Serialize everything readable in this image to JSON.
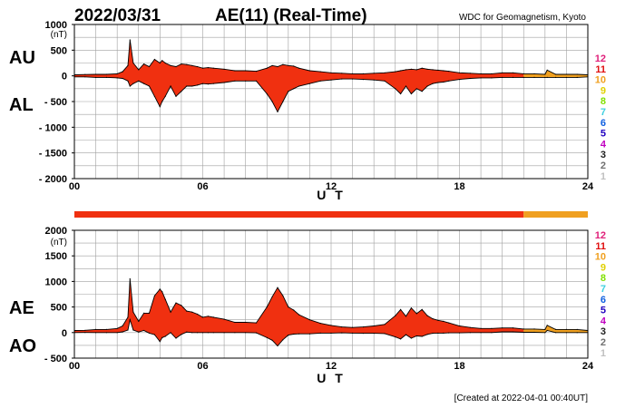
{
  "header": {
    "date": "2022/03/31",
    "title": "AE(11) (Real-Time)",
    "source": "WDC for Geomagnetism, Kyoto"
  },
  "footer": {
    "created": "[Created at 2022-04-01 00:40UT]"
  },
  "colors": {
    "fill_main": "#f03010",
    "fill_late": "#f0a020",
    "envelope": "#000000",
    "grid": "#a0a0a0"
  },
  "station_counts": [
    {
      "label": "12",
      "color": "#e0207a"
    },
    {
      "label": "11",
      "color": "#e01010"
    },
    {
      "label": "10",
      "color": "#f0a020"
    },
    {
      "label": "9",
      "color": "#e0d000"
    },
    {
      "label": "8",
      "color": "#80e000"
    },
    {
      "label": "7",
      "color": "#40d0e0"
    },
    {
      "label": "6",
      "color": "#1060e0"
    },
    {
      "label": "5",
      "color": "#2000c0"
    },
    {
      "label": "4",
      "color": "#c000c0"
    },
    {
      "label": "3",
      "color": "#202020"
    },
    {
      "label": "2",
      "color": "#707070"
    },
    {
      "label": "1",
      "color": "#c0c0c0"
    }
  ],
  "station_bar": {
    "segments": [
      {
        "start": 0,
        "end": 21,
        "color": "#f03010",
        "label": "11"
      },
      {
        "start": 21,
        "end": 24,
        "color": "#f0a020",
        "label": "10"
      }
    ]
  },
  "chart_data": [
    {
      "type": "area",
      "name": "AU/AL",
      "side_labels": [
        "AU",
        "AL"
      ],
      "unit": "(nT)",
      "xlabel": "U T",
      "xticks": [
        "00",
        "06",
        "12",
        "18",
        "24"
      ],
      "xlim": [
        0,
        24
      ],
      "ylim": [
        -2000,
        1000
      ],
      "yticks": [
        "1000",
        "500",
        "0",
        "- 500",
        "- 1000",
        "- 1500",
        "- 2000"
      ],
      "ytick_values": [
        1000,
        500,
        0,
        -500,
        -1000,
        -1500,
        -2000
      ],
      "grid": true,
      "x": [
        0,
        0.5,
        1,
        1.5,
        2,
        2.25,
        2.5,
        2.6,
        2.75,
        3,
        3.25,
        3.5,
        3.75,
        4,
        4.1,
        4.25,
        4.5,
        4.75,
        5,
        5.25,
        5.5,
        5.75,
        6,
        6.25,
        6.5,
        7,
        7.5,
        8,
        8.5,
        9,
        9.25,
        9.5,
        9.75,
        10,
        10.25,
        10.5,
        11,
        11.5,
        12,
        12.5,
        13,
        13.5,
        14,
        14.5,
        15,
        15.25,
        15.5,
        15.75,
        16,
        16.25,
        16.5,
        16.75,
        17,
        17.25,
        17.5,
        18,
        18.5,
        19,
        19.5,
        20,
        20.5,
        21,
        21.5,
        22,
        22.1,
        22.5,
        23,
        23.5,
        24
      ],
      "series": [
        {
          "name": "AU",
          "values": [
            20,
            25,
            30,
            30,
            40,
            80,
            200,
            700,
            250,
            120,
            230,
            180,
            320,
            250,
            300,
            250,
            200,
            180,
            230,
            220,
            200,
            180,
            150,
            160,
            150,
            130,
            100,
            100,
            90,
            150,
            200,
            180,
            220,
            200,
            190,
            150,
            100,
            80,
            60,
            50,
            40,
            40,
            50,
            60,
            80,
            100,
            120,
            130,
            120,
            150,
            130,
            120,
            110,
            100,
            90,
            60,
            50,
            40,
            40,
            60,
            60,
            40,
            40,
            30,
            110,
            30,
            30,
            30,
            20
          ]
        },
        {
          "name": "AL",
          "values": [
            -20,
            -20,
            -30,
            -30,
            -40,
            -50,
            -100,
            -200,
            -150,
            -100,
            -150,
            -200,
            -400,
            -600,
            -500,
            -400,
            -200,
            -400,
            -300,
            -200,
            -200,
            -180,
            -150,
            -160,
            -150,
            -130,
            -100,
            -100,
            -100,
            -350,
            -500,
            -700,
            -500,
            -300,
            -250,
            -200,
            -150,
            -100,
            -80,
            -60,
            -60,
            -70,
            -80,
            -100,
            -250,
            -350,
            -200,
            -350,
            -250,
            -300,
            -200,
            -150,
            -130,
            -120,
            -100,
            -70,
            -50,
            -40,
            -40,
            -30,
            -30,
            -30,
            -30,
            -30,
            -30,
            -30,
            -30,
            -30,
            -20
          ]
        }
      ]
    },
    {
      "type": "area",
      "name": "AE/AO",
      "side_labels": [
        "AE",
        "AO"
      ],
      "unit": "(nT)",
      "xlabel": "U T",
      "xticks": [
        "00",
        "06",
        "12",
        "18",
        "24"
      ],
      "xlim": [
        0,
        24
      ],
      "ylim": [
        -500,
        2000
      ],
      "yticks": [
        "2000",
        "1500",
        "1000",
        "500",
        "0",
        "- 500"
      ],
      "ytick_values": [
        2000,
        1500,
        1000,
        500,
        0,
        -500
      ],
      "grid": true,
      "x": [
        0,
        0.5,
        1,
        1.5,
        2,
        2.25,
        2.5,
        2.6,
        2.75,
        3,
        3.25,
        3.5,
        3.75,
        4,
        4.1,
        4.25,
        4.5,
        4.75,
        5,
        5.25,
        5.5,
        5.75,
        6,
        6.25,
        6.5,
        7,
        7.5,
        8,
        8.5,
        9,
        9.25,
        9.5,
        9.75,
        10,
        10.25,
        10.5,
        11,
        11.5,
        12,
        12.5,
        13,
        13.5,
        14,
        14.5,
        15,
        15.25,
        15.5,
        15.75,
        16,
        16.25,
        16.5,
        16.75,
        17,
        17.25,
        17.5,
        18,
        18.5,
        19,
        19.5,
        20,
        20.5,
        21,
        21.5,
        22,
        22.1,
        22.5,
        23,
        23.5,
        24
      ],
      "series": [
        {
          "name": "AE",
          "values": [
            40,
            45,
            60,
            60,
            80,
            130,
            300,
            1050,
            400,
            220,
            380,
            380,
            720,
            850,
            800,
            650,
            400,
            580,
            530,
            420,
            400,
            360,
            300,
            320,
            300,
            260,
            200,
            200,
            190,
            500,
            700,
            880,
            720,
            500,
            440,
            350,
            250,
            180,
            140,
            110,
            100,
            110,
            130,
            160,
            330,
            450,
            320,
            480,
            370,
            450,
            330,
            270,
            240,
            220,
            190,
            130,
            100,
            80,
            80,
            90,
            90,
            70,
            70,
            60,
            140,
            60,
            60,
            60,
            40
          ]
        },
        {
          "name": "AO",
          "values": [
            0,
            2,
            0,
            0,
            0,
            15,
            50,
            250,
            50,
            10,
            40,
            -10,
            -40,
            -175,
            -100,
            -75,
            0,
            -110,
            -35,
            10,
            0,
            0,
            0,
            0,
            0,
            0,
            0,
            0,
            -5,
            -100,
            -150,
            -260,
            -140,
            -50,
            -30,
            -25,
            -25,
            -10,
            -10,
            -5,
            -10,
            -15,
            -15,
            -20,
            -85,
            -125,
            -40,
            -110,
            -65,
            -75,
            -35,
            -15,
            -10,
            -10,
            -5,
            -5,
            0,
            0,
            0,
            15,
            15,
            5,
            5,
            0,
            40,
            0,
            0,
            0,
            0
          ]
        }
      ]
    }
  ]
}
